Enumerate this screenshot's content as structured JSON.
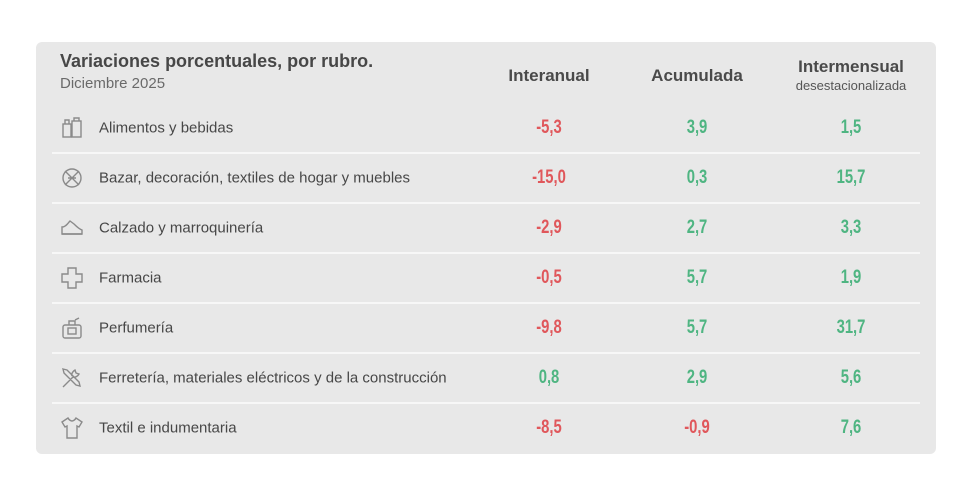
{
  "header": {
    "title": "Variaciones porcentuales, por rubro.",
    "subtitle": "Diciembre 2025"
  },
  "columns": [
    {
      "title": "Interanual"
    },
    {
      "title": "Acumulada"
    },
    {
      "title": "Intermensual",
      "subtitle": "desestacionalizada"
    }
  ],
  "rows": [
    {
      "label": "Alimentos y bebidas",
      "values": [
        "-5,3",
        "3,9",
        "1,5"
      ]
    },
    {
      "label": "Bazar, decoración, textiles de hogar y muebles",
      "values": [
        "-15,0",
        "0,3",
        "15,7"
      ]
    },
    {
      "label": "Calzado y marroquinería",
      "values": [
        "-2,9",
        "2,7",
        "3,3"
      ]
    },
    {
      "label": "Farmacia",
      "values": [
        "-0,5",
        "5,7",
        "1,9"
      ]
    },
    {
      "label": "Perfumería",
      "values": [
        "-9,8",
        "5,7",
        "31,7"
      ]
    },
    {
      "label": "Ferretería, materiales eléctricos y de la construcción",
      "values": [
        "0,8",
        "2,9",
        "5,6"
      ]
    },
    {
      "label": "Textil e indumentaria",
      "values": [
        "-8,5",
        "-0,9",
        "7,6"
      ]
    }
  ]
}
